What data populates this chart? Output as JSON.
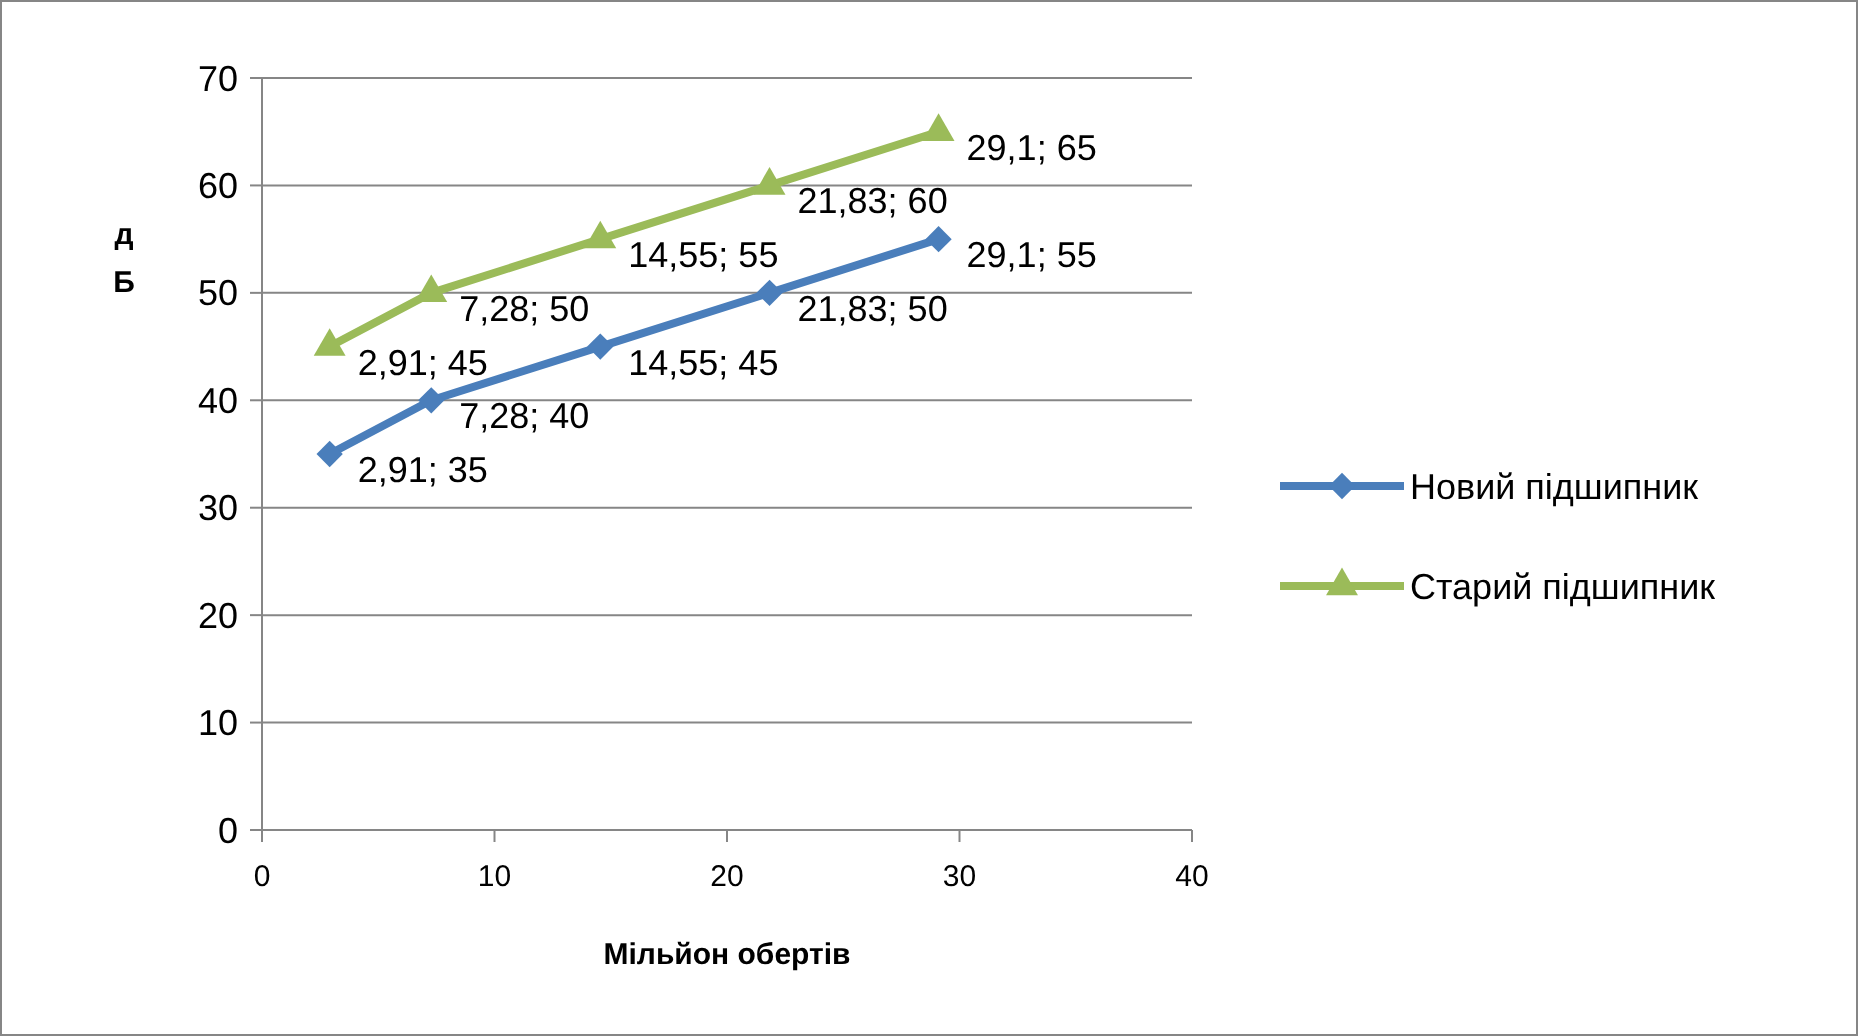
{
  "chart_data": {
    "type": "line",
    "xlabel": "Мільйон обертів",
    "ylabel": "дБ",
    "xlim": [
      0,
      40
    ],
    "xticks": [
      0,
      10,
      20,
      30,
      40
    ],
    "ylim": [
      0,
      70
    ],
    "yticks": [
      0,
      10,
      20,
      30,
      40,
      50,
      60,
      70
    ],
    "grid": "y",
    "legend": "right",
    "line_style": "solid",
    "series": [
      {
        "name": "Новий підшипник",
        "color": "#4a7ebb",
        "marker": "diamond",
        "x": [
          2.91,
          7.28,
          14.55,
          21.83,
          29.1
        ],
        "values": [
          35,
          40,
          45,
          50,
          55
        ],
        "value_labels": [
          "2,91; 35",
          "7,28; 40",
          "14,55; 45",
          "21,83; 50",
          "29,1; 55"
        ]
      },
      {
        "name": "Старий підшипник",
        "color": "#9bbb59",
        "marker": "triangle",
        "x": [
          2.91,
          7.28,
          14.55,
          21.83,
          29.1
        ],
        "values": [
          45,
          50,
          55,
          60,
          65
        ],
        "value_labels": [
          "2,91; 45",
          "7,28; 50",
          "14,55; 55",
          "21,83; 60",
          "29,1; 65"
        ]
      }
    ]
  }
}
